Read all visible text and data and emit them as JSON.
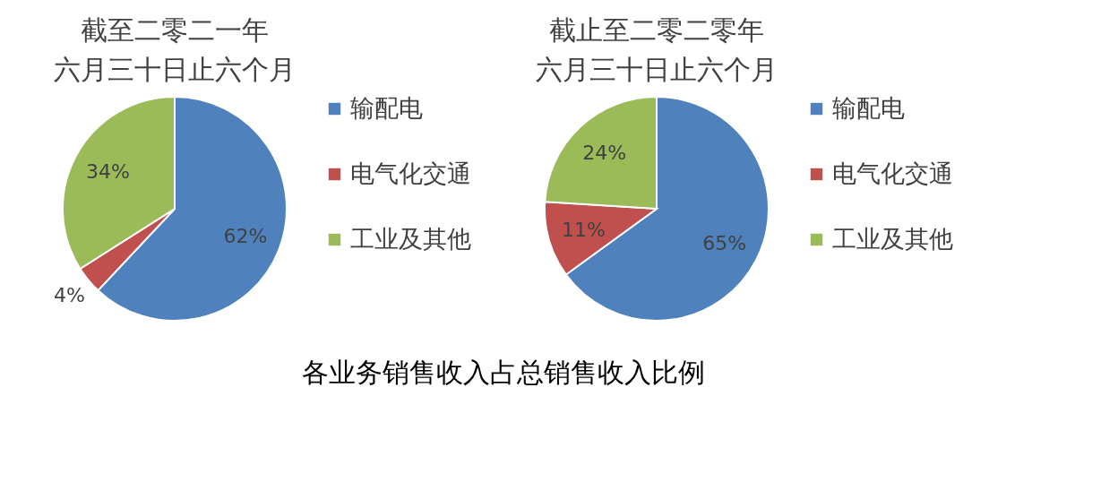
{
  "chart_data": [
    {
      "type": "pie",
      "title": "截至二零二一年",
      "subtitle": "六月三十日止六个月",
      "categories": [
        "输配电",
        "电气化交通",
        "工业及其他"
      ],
      "values": [
        62,
        4,
        34
      ],
      "colors": [
        "#4f81bd",
        "#c0504d",
        "#9bbb59"
      ],
      "value_labels": [
        "62%",
        "4%",
        "34%"
      ],
      "legend": "right",
      "annotations": [
        "各业务销售收入占总销售收入比例"
      ]
    },
    {
      "type": "pie",
      "title": "截止至二零二零年",
      "subtitle": "六月三十日止六个月",
      "categories": [
        "输配电",
        "电气化交通",
        "工业及其他"
      ],
      "values": [
        65,
        11,
        24
      ],
      "colors": [
        "#4f81bd",
        "#c0504d",
        "#9bbb59"
      ],
      "value_labels": [
        "65%",
        "11%",
        "24%"
      ],
      "legend": "right"
    }
  ]
}
